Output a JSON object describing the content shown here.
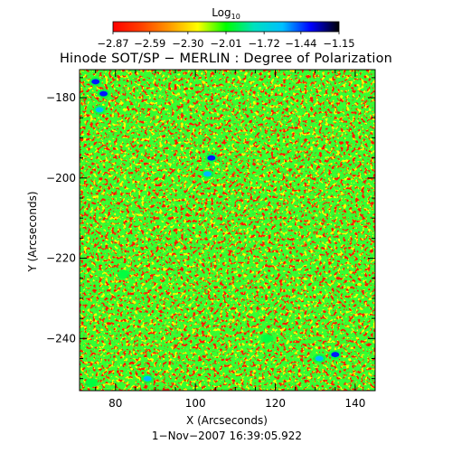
{
  "chart_data": {
    "type": "heatmap",
    "title": "Hinode SOT/SP − MERLIN : Degree of Polarization",
    "xlabel": "X (Arcseconds)",
    "ylabel": "Y (Arcseconds)",
    "timestamp": "1−Nov−2007 16:39:05.922",
    "xlim": [
      71,
      145
    ],
    "ylim": [
      -253,
      -173
    ],
    "x_ticks": [
      80,
      100,
      120,
      140
    ],
    "y_ticks": [
      -180,
      -200,
      -220,
      -240
    ],
    "x_tick_labels": [
      "80",
      "100",
      "120",
      "140"
    ],
    "y_tick_labels": [
      "−180",
      "−200",
      "−220",
      "−240"
    ],
    "colorbar": {
      "label_prefix": "Log",
      "label_subscript": "10",
      "range": [
        -2.87,
        -1.15
      ],
      "ticks": [
        -2.87,
        -2.59,
        -2.3,
        -2.01,
        -1.72,
        -1.44,
        -1.15
      ],
      "tick_labels": [
        "−2.87",
        "−2.59",
        "−2.30",
        "−2.01",
        "−1.72",
        "−1.44",
        "−1.15"
      ],
      "colors": [
        "#ff0000",
        "#ff4000",
        "#ff9900",
        "#ffff00",
        "#00ff00",
        "#00e0c0",
        "#00c0ff",
        "#0000ff",
        "#000000"
      ]
    },
    "colormap_note": "map values mostly red (about -2.87), scattered yellow/green speckle, sparse cyan/blue patches",
    "features": [
      {
        "x": 75,
        "y": -176,
        "value": -1.44
      },
      {
        "x": 77,
        "y": -179,
        "value": -1.44
      },
      {
        "x": 76,
        "y": -183,
        "value": -1.72
      },
      {
        "x": 104,
        "y": -195,
        "value": -1.44
      },
      {
        "x": 103,
        "y": -199,
        "value": -1.72
      },
      {
        "x": 135,
        "y": -244,
        "value": -1.44
      },
      {
        "x": 131,
        "y": -245,
        "value": -1.72
      },
      {
        "x": 88,
        "y": -250,
        "value": -1.72
      },
      {
        "x": 74,
        "y": -251,
        "value": -2.01
      },
      {
        "x": 118,
        "y": -240,
        "value": -2.01
      },
      {
        "x": 82,
        "y": -224,
        "value": -2.01
      }
    ]
  }
}
